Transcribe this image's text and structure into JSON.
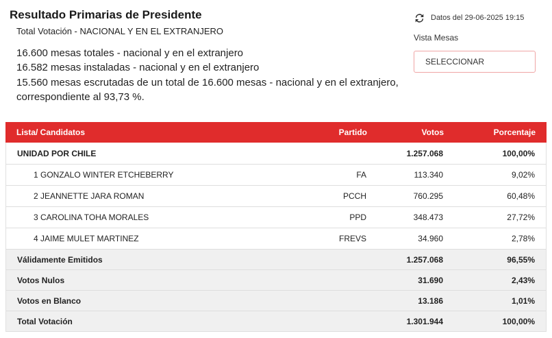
{
  "header": {
    "title": "Resultado Primarias de Presidente",
    "subtitle": "Total Votación - NACIONAL Y EN EL EXTRANJERO"
  },
  "summary": {
    "lines": [
      "16.600 mesas totales - nacional y en el extranjero",
      "16.582 mesas instaladas - nacional y en el extranjero",
      "15.560 mesas escrutadas de un total de 16.600 mesas - nacional y en el extranjero,",
      "correspondiente al 93,73 %."
    ]
  },
  "update": {
    "icon": "refresh-icon",
    "text": "Datos del 29-06-2025 19:15"
  },
  "view": {
    "label": "Vista Mesas",
    "select_placeholder": "SELECCIONAR"
  },
  "table": {
    "columns": {
      "list": "Lista/ Candidatos",
      "party": "Partido",
      "votes": "Votos",
      "percent": "Porcentaje"
    },
    "list_row": {
      "name": "UNIDAD POR CHILE",
      "votes": "1.257.068",
      "percent": "100,00%"
    },
    "candidates": [
      {
        "name": "1 GONZALO WINTER ETCHEBERRY",
        "party": "FA",
        "votes": "113.340",
        "percent": "9,02%"
      },
      {
        "name": "2 JEANNETTE JARA ROMAN",
        "party": "PCCH",
        "votes": "760.295",
        "percent": "60,48%"
      },
      {
        "name": "3 CAROLINA TOHA MORALES",
        "party": "PPD",
        "votes": "348.473",
        "percent": "27,72%"
      },
      {
        "name": "4 JAIME MULET MARTINEZ",
        "party": "FREVS",
        "votes": "34.960",
        "percent": "2,78%"
      }
    ],
    "totals": [
      {
        "label": "Válidamente Emitidos",
        "votes": "1.257.068",
        "percent": "96,55%"
      },
      {
        "label": "Votos Nulos",
        "votes": "31.690",
        "percent": "2,43%"
      },
      {
        "label": "Votos en Blanco",
        "votes": "13.186",
        "percent": "1,01%"
      },
      {
        "label": "Total Votación",
        "votes": "1.301.944",
        "percent": "100,00%"
      }
    ]
  },
  "colors": {
    "header_red": "#e02c2c",
    "select_border": "#f0a5a5",
    "totals_background": "#f0f0f0",
    "text": "#222222"
  }
}
